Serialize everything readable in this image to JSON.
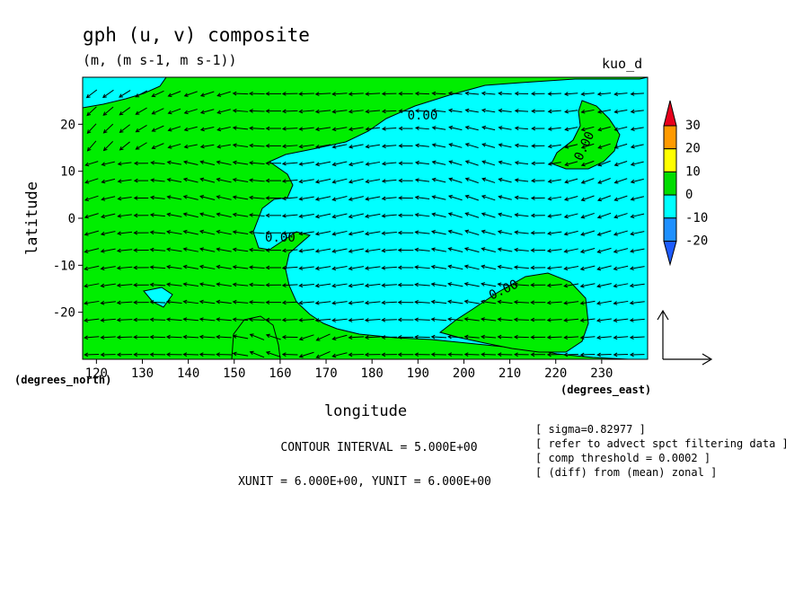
{
  "chart_data": {
    "type": "contour-vector",
    "title": "gph (u, v) composite",
    "subtitle": "(m, (m s-1, m s-1))",
    "model_label": "kuo_d",
    "xlabel": "longitude",
    "ylabel": "latitude",
    "x_unit_label": "(degrees_east)",
    "y_unit_label": "(degrees_north)",
    "xlim": [
      117,
      240
    ],
    "ylim": [
      -30,
      30
    ],
    "x_ticks": [
      120,
      130,
      140,
      150,
      160,
      170,
      180,
      190,
      200,
      210,
      220,
      230
    ],
    "y_ticks": [
      20,
      10,
      0,
      -10,
      -20
    ],
    "colorbar": {
      "levels": [
        "30",
        "20",
        "10",
        "0",
        "-10",
        "-20"
      ],
      "colors": [
        "#e8001c",
        "#ff9a00",
        "#ffff00",
        "#00dd00",
        "#00ffff",
        "#1e90ff",
        "#1e5cff"
      ]
    },
    "contour_labels": [
      {
        "text": "0.00",
        "x": 191,
        "y": 21
      },
      {
        "text": "0.00",
        "x": 227,
        "y": 15
      },
      {
        "text": "0.00",
        "x": 160,
        "y": -5
      },
      {
        "text": "0.00",
        "x": 209,
        "y": -16
      }
    ],
    "fill_colors": {
      "positive": "#00ee00",
      "negative": "#00ffff"
    },
    "contour_interval": "CONTOUR INTERVAL = 5.000E+00",
    "vector_units": "XUNIT = 6.000E+00, YUNIT = 6.000E+00",
    "notes": [
      "[ sigma=0.82977 ]",
      "[ refer to advect spct filtering data ]",
      "[ comp threshold = 0.0002 ]",
      "[ (diff) from (mean) zonal ]"
    ]
  }
}
